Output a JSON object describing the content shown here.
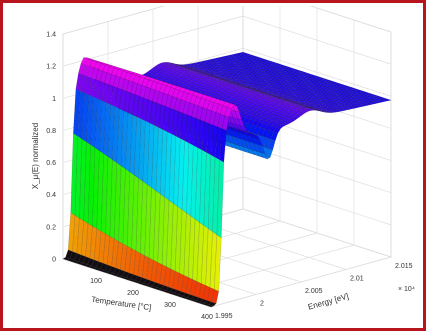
{
  "frame": {
    "border_color": "#b8141e"
  },
  "chart_data": {
    "type": "surface",
    "xlabel": "Temperature [°C]",
    "ylabel": "Energy [eV]",
    "zlabel": "X_μ(E) normalized",
    "y_exponent_label": "× 10⁴",
    "x_ticks": [
      "100",
      "200",
      "300",
      "400"
    ],
    "y_ticks": [
      "1.995",
      "2",
      "2.005",
      "2.01",
      "2.015"
    ],
    "z_ticks": [
      "0",
      "0.2",
      "0.4",
      "0.6",
      "0.8",
      "1",
      "1.2",
      "1.4"
    ],
    "xlim": [
      0,
      400
    ],
    "ylim": [
      1.995,
      2.015
    ],
    "zlim": [
      0,
      1.4
    ],
    "colormap": "hsv",
    "grid": true,
    "surface": {
      "description_values": {
        "edge_position_energy": 1.996,
        "pre_edge_level": 0.0,
        "white_line_peak": 1.2,
        "post_edge_level": 1.0
      }
    }
  }
}
